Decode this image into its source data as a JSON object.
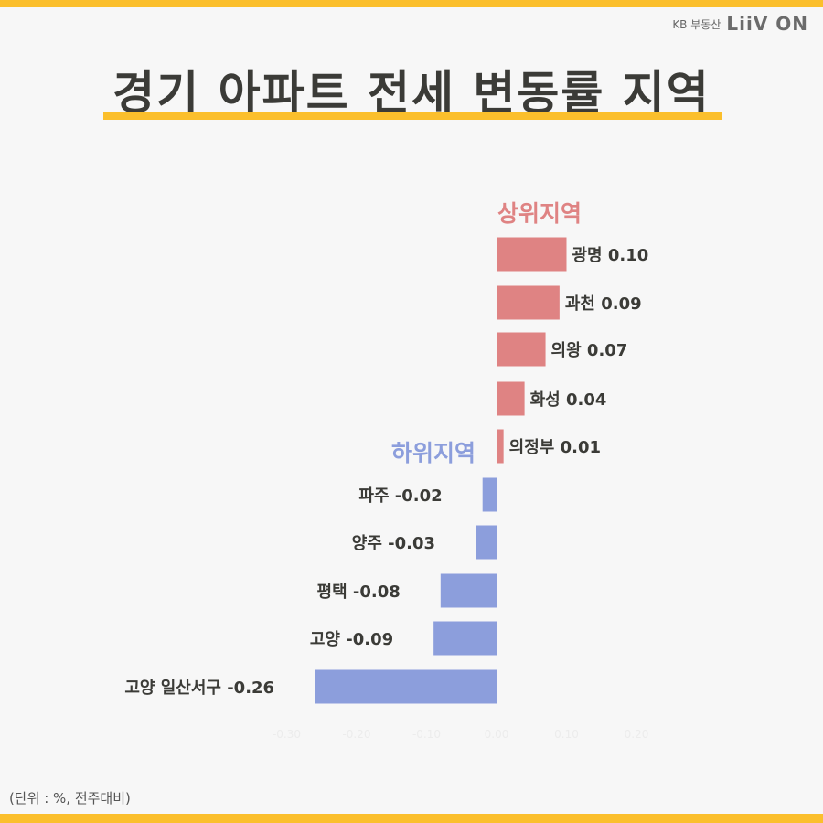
{
  "brand": {
    "kb": "KB 부동산",
    "liiv": "LiiV ON"
  },
  "title": "경기 아파트 전세 변동률 지역",
  "unit_note": "(단위 : %, 전주대비)",
  "colors": {
    "accent": "#fbbf2c",
    "upper": "#df8383",
    "lower": "#8c9edc",
    "text": "#3b3b37"
  },
  "chart_data": {
    "type": "bar",
    "orientation": "horizontal",
    "xlim": [
      -0.3,
      0.2
    ],
    "x_ticks": [
      "-0.30",
      "-0.20",
      "-0.10",
      "0.00",
      "0.10",
      "0.20"
    ],
    "grid": false,
    "series": [
      {
        "name": "상위지역",
        "categories": [
          "광명",
          "과천",
          "의왕",
          "화성",
          "의정부"
        ],
        "values": [
          0.1,
          0.09,
          0.07,
          0.04,
          0.01
        ],
        "labels": [
          "광명 0.10",
          "과천 0.09",
          "의왕 0.07",
          "화성 0.04",
          "의정부 0.01"
        ]
      },
      {
        "name": "하위지역",
        "categories": [
          "파주",
          "양주",
          "평택",
          "고양",
          "고양 일산서구"
        ],
        "values": [
          -0.02,
          -0.03,
          -0.08,
          -0.09,
          -0.26
        ],
        "labels": [
          "파주 -0.02",
          "양주 -0.03",
          "평택 -0.08",
          "고양 -0.09",
          "고양 일산서구 -0.26"
        ]
      }
    ]
  }
}
